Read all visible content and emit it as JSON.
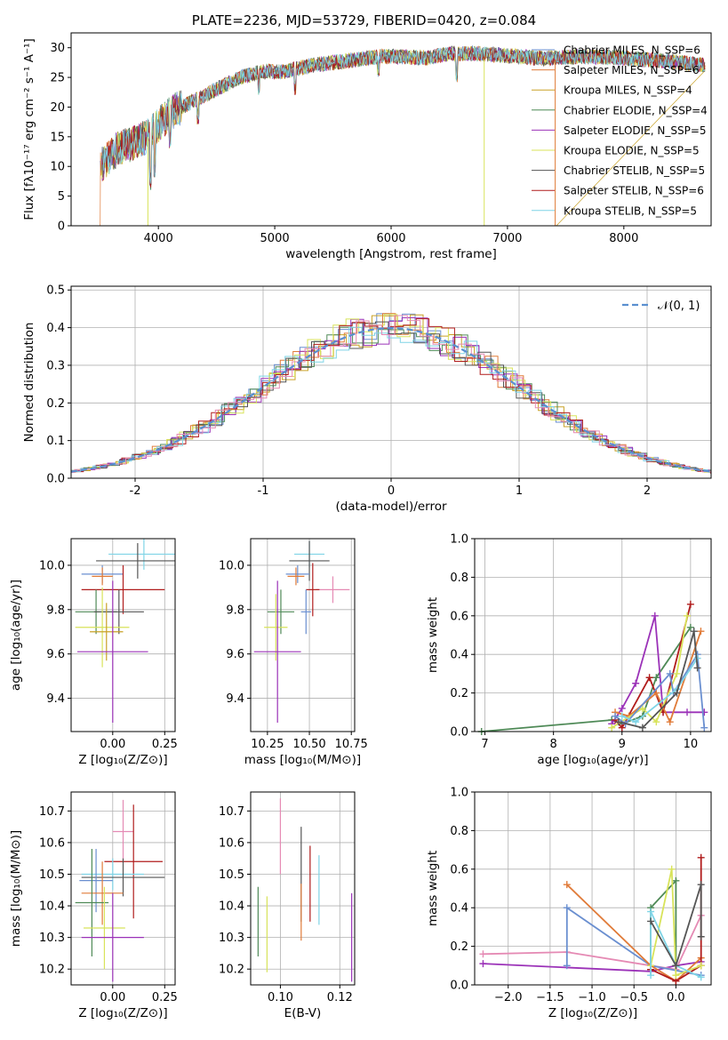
{
  "chart_data": [
    {
      "id": "spectrum",
      "type": "line",
      "title": "PLATE=2236, MJD=53729, FIBERID=0420, z=0.084",
      "xlabel": "wavelength [Angstrom, rest frame]",
      "ylabel": "Flux [fλ10⁻¹⁷ erg cm⁻² s⁻¹ A⁻¹]",
      "xlim": [
        3250,
        8750
      ],
      "ylim": [
        0,
        32.5
      ],
      "xticks": [
        4000,
        5000,
        6000,
        7000,
        8000
      ],
      "yticks": [
        0,
        5,
        10,
        15,
        20,
        25,
        30
      ],
      "grid": false,
      "legend_position": "upper right",
      "series": [
        {
          "name": "Chabrier MILES, N_SSP=6",
          "color": "#6a8fd0"
        },
        {
          "name": "Salpeter MILES, N_SSP=6",
          "color": "#e07b39"
        },
        {
          "name": "Kroupa MILES, N_SSP=4",
          "color": "#c9a227"
        },
        {
          "name": "Chabrier ELODIE, N_SSP=4",
          "color": "#4f8a57"
        },
        {
          "name": "Salpeter ELODIE, N_SSP=5",
          "color": "#9b32b8"
        },
        {
          "name": "Kroupa ELODIE, N_SSP=5",
          "color": "#d8e35a"
        },
        {
          "name": "Chabrier STELIB, N_SSP=5",
          "color": "#555555"
        },
        {
          "name": "Salpeter STELIB, N_SSP=6",
          "color": "#b01c1c"
        },
        {
          "name": "Kroupa STELIB, N_SSP=5",
          "color": "#7fd4e6"
        }
      ],
      "anchor_x": [
        3500,
        3550,
        3650,
        3800,
        3900,
        4000,
        4100,
        4300,
        4500,
        4700,
        4900,
        5100,
        5300,
        5500,
        5700,
        5900,
        6100,
        6300,
        6500,
        6700,
        6900,
        7100,
        7300,
        7600,
        7900,
        8200,
        8500,
        8700
      ],
      "anchor_y": [
        10,
        11,
        13,
        14,
        15,
        17,
        19,
        21,
        23,
        25,
        26,
        26,
        27,
        27.5,
        28,
        28.5,
        28.5,
        28.3,
        29,
        29,
        28.8,
        28.5,
        28.2,
        28.5,
        28.4,
        28,
        27.5,
        27
      ]
    },
    {
      "id": "residuals",
      "type": "histogram",
      "xlabel": "(data-model)/error",
      "ylabel": "Normed distribution",
      "xlim": [
        -2.5,
        2.5
      ],
      "ylim": [
        0,
        0.51
      ],
      "xticks": [
        -2,
        -1,
        0,
        1,
        2
      ],
      "yticks": [
        0.0,
        0.1,
        0.2,
        0.3,
        0.4,
        0.5
      ],
      "grid": true,
      "legend_position": "upper right",
      "reference_curve": {
        "name": "N(0,1)",
        "label_text": "𝒩(0, 1)",
        "color": "#5a8fd0",
        "mean": 0,
        "sigma": 1
      },
      "bin_width": 0.1,
      "series_colors": [
        "#6a8fd0",
        "#e07b39",
        "#c9a227",
        "#4f8a57",
        "#9b32b8",
        "#d8e35a",
        "#555555",
        "#b01c1c",
        "#7fd4e6",
        "#e58ab4"
      ]
    },
    {
      "id": "age-vs-Z",
      "type": "errorbar",
      "xlabel": "Z [log₁₀(Z/Z⊙)]",
      "ylabel": "age  [log₁₀(age/yr)]",
      "xlim": [
        -0.2,
        0.3
      ],
      "ylim": [
        9.25,
        10.12
      ],
      "xticks": [
        0.0,
        0.25
      ],
      "xtick_labels": [
        "0.00",
        "0.25"
      ],
      "yticks": [
        9.4,
        9.6,
        9.8,
        10.0
      ],
      "grid": true,
      "points": [
        {
          "x": 0.15,
          "y": 10.05,
          "xerr": 0.17,
          "yerr": 0.07,
          "color": "#7fd4e6"
        },
        {
          "x": 0.12,
          "y": 10.02,
          "xerr": 0.2,
          "yerr": 0.08,
          "color": "#555555"
        },
        {
          "x": -0.05,
          "y": 9.96,
          "xerr": 0.1,
          "yerr": 0.04,
          "color": "#6a8fd0"
        },
        {
          "x": -0.05,
          "y": 9.95,
          "xerr": 0.05,
          "yerr": 0.04,
          "color": "#e07b39"
        },
        {
          "x": 0.05,
          "y": 9.89,
          "xerr": 0.2,
          "yerr": 0.11,
          "color": "#b01c1c"
        },
        {
          "x": -0.08,
          "y": 9.79,
          "xerr": 0.1,
          "yerr": 0.1,
          "color": "#4f8a57"
        },
        {
          "x": 0.03,
          "y": 9.79,
          "xerr": 0.12,
          "yerr": 0.1,
          "color": "#555555"
        },
        {
          "x": -0.05,
          "y": 9.72,
          "xerr": 0.13,
          "yerr": 0.18,
          "color": "#d8e35a"
        },
        {
          "x": -0.03,
          "y": 9.7,
          "xerr": 0.08,
          "yerr": 0.13,
          "color": "#c9a227"
        },
        {
          "x": 0.0,
          "y": 9.61,
          "xerr": 0.17,
          "yerr": 0.32,
          "color": "#9b32b8"
        }
      ]
    },
    {
      "id": "age-vs-mass",
      "type": "errorbar",
      "xlabel": "mass [log₁₀(M/M⊙)]",
      "xlim": [
        10.15,
        10.77
      ],
      "ylim": [
        9.25,
        10.12
      ],
      "xticks": [
        10.25,
        10.5,
        10.75
      ],
      "xtick_labels": [
        "10.25",
        "10.50",
        "10.75"
      ],
      "yticks": [
        9.4,
        9.6,
        9.8,
        10.0
      ],
      "grid": true,
      "points": [
        {
          "x": 10.5,
          "y": 10.05,
          "xerr": 0.09,
          "yerr": 0.06,
          "color": "#7fd4e6"
        },
        {
          "x": 10.5,
          "y": 10.02,
          "xerr": 0.12,
          "yerr": 0.09,
          "color": "#555555"
        },
        {
          "x": 10.43,
          "y": 9.96,
          "xerr": 0.07,
          "yerr": 0.04,
          "color": "#6a8fd0"
        },
        {
          "x": 10.42,
          "y": 9.95,
          "xerr": 0.05,
          "yerr": 0.04,
          "color": "#e07b39"
        },
        {
          "x": 10.64,
          "y": 9.89,
          "xerr": 0.1,
          "yerr": 0.06,
          "color": "#e58ab4"
        },
        {
          "x": 10.52,
          "y": 9.89,
          "xerr": 0.04,
          "yerr": 0.12,
          "color": "#b01c1c"
        },
        {
          "x": 10.33,
          "y": 9.79,
          "xerr": 0.08,
          "yerr": 0.1,
          "color": "#4f8a57"
        },
        {
          "x": 10.48,
          "y": 9.79,
          "xerr": 0.03,
          "yerr": 0.1,
          "color": "#6a8fd0"
        },
        {
          "x": 10.3,
          "y": 9.72,
          "xerr": 0.07,
          "yerr": 0.15,
          "color": "#d8e35a"
        },
        {
          "x": 10.31,
          "y": 9.61,
          "xerr": 0.14,
          "yerr": 0.32,
          "color": "#9b32b8"
        }
      ]
    },
    {
      "id": "mass-weight-vs-age",
      "type": "line",
      "xlabel": "age  [log₁₀(age/yr)]",
      "ylabel": "mass weight",
      "xlim": [
        6.85,
        10.3
      ],
      "ylim": [
        0,
        1.0
      ],
      "xticks": [
        7,
        8,
        9,
        10
      ],
      "yticks": [
        0.0,
        0.2,
        0.4,
        0.6,
        0.8,
        1.0
      ],
      "grid": true,
      "series": [
        {
          "color": "#4f8a57",
          "x": [
            6.95,
            8.85,
            9.0,
            9.3,
            9.5,
            10.0
          ],
          "y": [
            0.0,
            0.06,
            0.04,
            0.08,
            0.28,
            0.54
          ]
        },
        {
          "color": "#9b32b8",
          "x": [
            8.85,
            9.0,
            9.2,
            9.48,
            9.6,
            9.95,
            10.2
          ],
          "y": [
            0.04,
            0.12,
            0.25,
            0.6,
            0.1,
            0.1,
            0.1
          ]
        },
        {
          "color": "#b01c1c",
          "x": [
            8.9,
            9.0,
            9.4,
            9.6,
            10.0
          ],
          "y": [
            0.06,
            0.02,
            0.28,
            0.1,
            0.66
          ]
        },
        {
          "color": "#e07b39",
          "x": [
            8.9,
            9.1,
            9.5,
            9.7,
            10.15
          ],
          "y": [
            0.1,
            0.08,
            0.2,
            0.05,
            0.52
          ]
        },
        {
          "color": "#d8e35a",
          "x": [
            8.85,
            9.3,
            9.5,
            9.8,
            9.95
          ],
          "y": [
            0.02,
            0.12,
            0.05,
            0.3,
            0.6
          ]
        },
        {
          "color": "#6a8fd0",
          "x": [
            8.9,
            9.05,
            9.7,
            9.75,
            10.1,
            10.2
          ],
          "y": [
            0.08,
            0.04,
            0.3,
            0.2,
            0.4,
            0.02
          ]
        },
        {
          "color": "#7fd4e6",
          "x": [
            9.0,
            9.2,
            9.8,
            10.1
          ],
          "y": [
            0.08,
            0.05,
            0.22,
            0.38
          ]
        },
        {
          "color": "#555555",
          "x": [
            8.95,
            9.3,
            9.8,
            10.05,
            10.1
          ],
          "y": [
            0.05,
            0.02,
            0.2,
            0.52,
            0.33
          ]
        }
      ]
    },
    {
      "id": "mass-vs-Z",
      "type": "errorbar",
      "xlabel": "Z [log₁₀(Z/Z⊙)]",
      "ylabel": "mass [log₁₀(M/M⊙)]",
      "xlim": [
        -0.2,
        0.3
      ],
      "ylim": [
        10.15,
        10.76
      ],
      "xticks": [
        0.0,
        0.25
      ],
      "xtick_labels": [
        "0.00",
        "0.25"
      ],
      "yticks": [
        10.2,
        10.3,
        10.4,
        10.5,
        10.6,
        10.7
      ],
      "grid": true,
      "points": [
        {
          "x": 0.05,
          "y": 10.635,
          "xerr": 0.05,
          "yerr": 0.1,
          "color": "#e58ab4"
        },
        {
          "x": 0.1,
          "y": 10.54,
          "xerr": 0.14,
          "yerr": 0.18,
          "color": "#b01c1c"
        },
        {
          "x": 0.0,
          "y": 10.5,
          "xerr": 0.15,
          "yerr": 0.05,
          "color": "#7fd4e6"
        },
        {
          "x": 0.05,
          "y": 10.49,
          "xerr": 0.2,
          "yerr": 0.06,
          "color": "#555555"
        },
        {
          "x": -0.08,
          "y": 10.48,
          "xerr": 0.08,
          "yerr": 0.1,
          "color": "#6a8fd0"
        },
        {
          "x": -0.05,
          "y": 10.44,
          "xerr": 0.1,
          "yerr": 0.1,
          "color": "#e07b39"
        },
        {
          "x": -0.1,
          "y": 10.41,
          "xerr": 0.08,
          "yerr": 0.17,
          "color": "#4f8a57"
        },
        {
          "x": -0.04,
          "y": 10.33,
          "xerr": 0.1,
          "yerr": 0.13,
          "color": "#d8e35a"
        },
        {
          "x": 0.0,
          "y": 10.3,
          "xerr": 0.15,
          "yerr": 0.14,
          "color": "#9b32b8"
        }
      ]
    },
    {
      "id": "mass-vs-EBV",
      "type": "errorbar",
      "xlabel": "E(B-V)",
      "xlim": [
        0.09,
        0.125
      ],
      "ylim": [
        10.15,
        10.76
      ],
      "xticks": [
        0.1,
        0.12
      ],
      "xtick_labels": [
        "0.10",
        "0.12"
      ],
      "yticks": [
        10.2,
        10.3,
        10.4,
        10.5,
        10.6,
        10.7
      ],
      "grid": true,
      "points": [
        {
          "x": 0.1,
          "y": 10.62,
          "xerr": 0,
          "yerr": 0.12,
          "color": "#e58ab4"
        },
        {
          "x": 0.107,
          "y": 10.5,
          "xerr": 0,
          "yerr": 0.15,
          "color": "#555555"
        },
        {
          "x": 0.11,
          "y": 10.47,
          "xerr": 0,
          "yerr": 0.12,
          "color": "#b01c1c"
        },
        {
          "x": 0.113,
          "y": 10.45,
          "xerr": 0,
          "yerr": 0.11,
          "color": "#7fd4e6"
        },
        {
          "x": 0.0925,
          "y": 10.35,
          "xerr": 0,
          "yerr": 0.11,
          "color": "#4f8a57"
        },
        {
          "x": 0.0955,
          "y": 10.31,
          "xerr": 0,
          "yerr": 0.12,
          "color": "#d8e35a"
        },
        {
          "x": 0.107,
          "y": 10.38,
          "xerr": 0,
          "yerr": 0.09,
          "color": "#e07b39"
        },
        {
          "x": 0.124,
          "y": 10.3,
          "xerr": 0,
          "yerr": 0.14,
          "color": "#9b32b8"
        }
      ]
    },
    {
      "id": "mass-weight-vs-Z",
      "type": "line",
      "xlabel": "Z [log₁₀(Z/Z⊙)]",
      "ylabel": "mass weight",
      "xlim": [
        -2.4,
        0.42
      ],
      "ylim": [
        0,
        1.0
      ],
      "xticks": [
        -2.0,
        -1.5,
        -1.0,
        -0.5,
        0.0
      ],
      "xtick_labels": [
        "−2.0",
        "−1.5",
        "−1.0",
        "−0.5",
        "0.0"
      ],
      "yticks": [
        0.0,
        0.2,
        0.4,
        0.6,
        0.8,
        1.0
      ],
      "grid": true,
      "series": [
        {
          "color": "#9b32b8",
          "x": [
            -2.3,
            -0.3,
            0.0,
            0.3
          ],
          "y": [
            0.11,
            0.07,
            0.1,
            0.12
          ]
        },
        {
          "color": "#e58ab4",
          "x": [
            -2.3,
            -1.3,
            -0.3,
            0.0,
            0.3
          ],
          "y": [
            0.16,
            0.17,
            0.1,
            0.08,
            0.36
          ]
        },
        {
          "color": "#6a8fd0",
          "x": [
            -1.3,
            -1.3,
            -0.3,
            0.3
          ],
          "y": [
            0.1,
            0.4,
            0.1,
            0.05
          ]
        },
        {
          "color": "#e07b39",
          "x": [
            -1.3,
            -0.3,
            0.0,
            0.3
          ],
          "y": [
            0.52,
            0.1,
            0.02,
            0.14
          ]
        },
        {
          "color": "#4f8a57",
          "x": [
            -0.3,
            -0.3,
            0.0,
            0.0
          ],
          "y": [
            0.08,
            0.4,
            0.54,
            0.1
          ]
        },
        {
          "color": "#b01c1c",
          "x": [
            -0.3,
            0.0,
            0.3,
            0.3
          ],
          "y": [
            0.08,
            0.02,
            0.1,
            0.66
          ]
        },
        {
          "color": "#d8e35a",
          "x": [
            -0.3,
            -0.05,
            0.0,
            0.3
          ],
          "y": [
            0.1,
            0.6,
            0.05,
            0.1
          ]
        },
        {
          "color": "#7fd4e6",
          "x": [
            -0.3,
            -0.3,
            0.0,
            0.3
          ],
          "y": [
            0.05,
            0.38,
            0.1,
            0.04
          ]
        },
        {
          "color": "#555555",
          "x": [
            -0.3,
            0.0,
            0.3,
            0.3
          ],
          "y": [
            0.33,
            0.1,
            0.52,
            0.25
          ]
        }
      ]
    }
  ]
}
